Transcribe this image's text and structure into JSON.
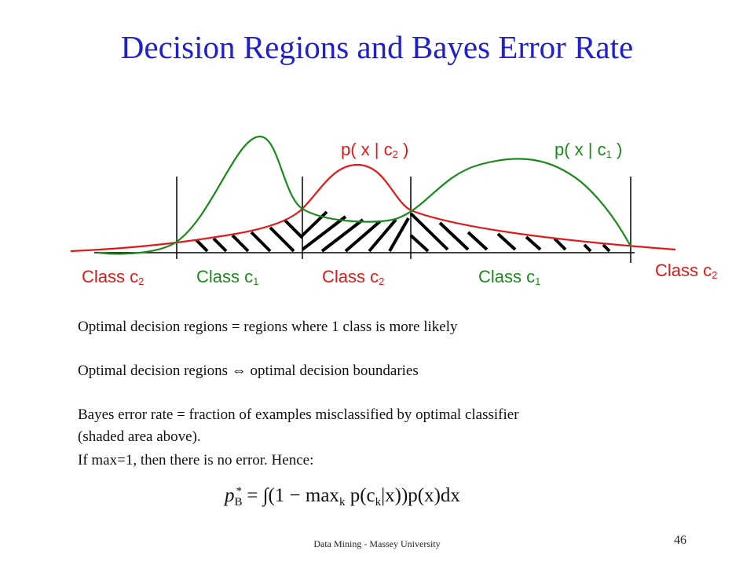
{
  "slide": {
    "title": "Decision Regions and Bayes Error Rate",
    "footer": "Data Mining - Massey University",
    "page_number": "46"
  },
  "colors": {
    "title": "#1f1fd0",
    "class_c2_curve": "#e01a1a",
    "class_c1_curve": "#1a8a1a",
    "hatch": "#000000"
  },
  "curve_labels": {
    "c2": {
      "prefix": "p( x | c",
      "sub": "2",
      "suffix": " )"
    },
    "c1": {
      "prefix": "p( x | c",
      "sub": "1",
      "suffix": " )"
    }
  },
  "region_labels": [
    {
      "text": "Class c",
      "sub": "2",
      "color": "red"
    },
    {
      "text": "Class c",
      "sub": "1",
      "color": "green"
    },
    {
      "text": "Class c",
      "sub": "2",
      "color": "red"
    },
    {
      "text": "Class c",
      "sub": "1",
      "color": "green"
    },
    {
      "text": "Class c",
      "sub": "2",
      "color": "red"
    }
  ],
  "text": {
    "line1": "Optimal decision regions = regions where 1 class is more likely",
    "line2": "Optimal decision regions ⇔ optimal decision boundaries",
    "line3": "Bayes error rate = fraction of examples misclassified by optimal classifier",
    "line4": "(shaded area above).",
    "line5": "If max=1, then there is no error.  Hence:"
  },
  "formula": {
    "lhs": "p",
    "lhs_sub": "B",
    "lhs_sup": "*",
    "rhs": "= ∫(1 − max",
    "rhs_sub": "k",
    "rhs_rest": " p(c",
    "rhs_sub2": "k",
    "rhs_end": "|x))p(x)dx"
  }
}
